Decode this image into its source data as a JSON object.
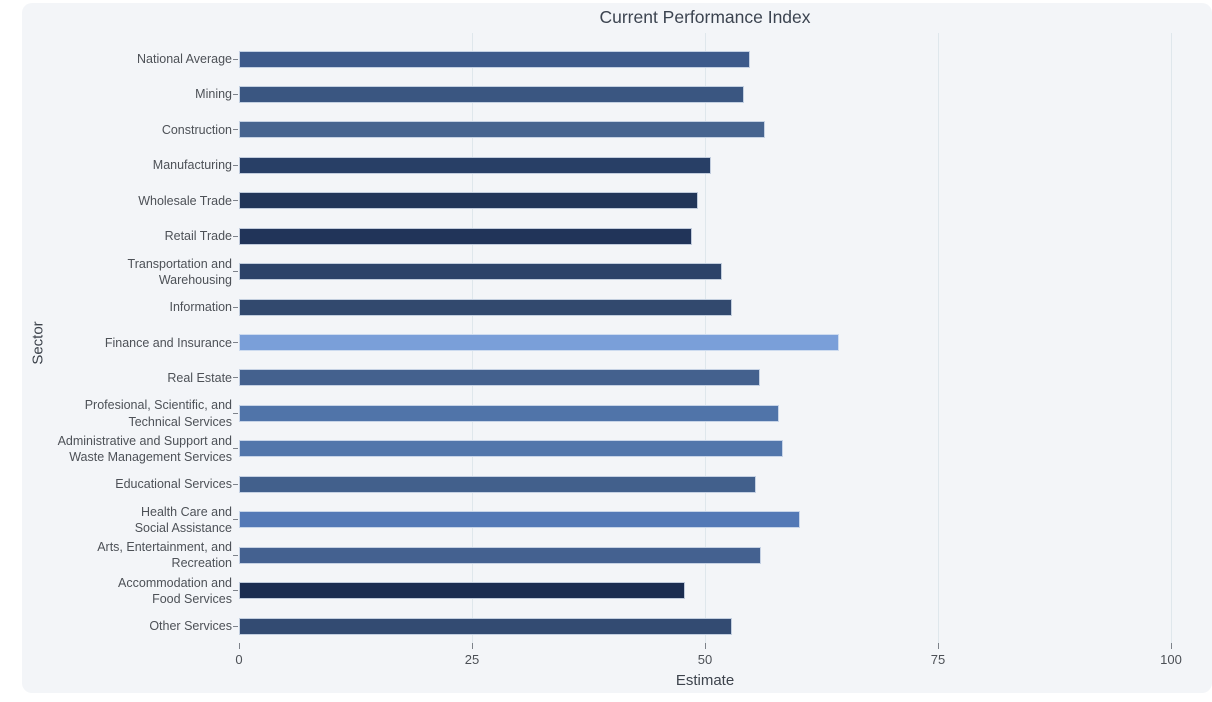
{
  "chart_data": {
    "type": "bar",
    "orientation": "horizontal",
    "title": "Current Performance Index",
    "xlabel": "Estimate",
    "ylabel": "Sector",
    "xlim": [
      0,
      100
    ],
    "xticks": [
      0,
      25,
      50,
      75,
      100
    ],
    "grid": true,
    "legend": "none",
    "categories": [
      "National Average",
      "Mining",
      "Construction",
      "Manufacturing",
      "Wholesale Trade",
      "Retail Trade",
      "Transportation and\nWarehousing",
      "Information",
      "Finance and Insurance",
      "Real Estate",
      "Profesional, Scientific, and\nTechnical Services",
      "Administrative and Support and\nWaste Management Services",
      "Educational Services",
      "Health Care and\nSocial Assistance",
      "Arts, Entertainment, and\nRecreation",
      "Accommodation and\nFood Services",
      "Other Services"
    ],
    "values": [
      54.8,
      54.2,
      56.4,
      50.6,
      49.3,
      48.6,
      51.8,
      52.9,
      64.4,
      55.9,
      57.9,
      58.4,
      55.5,
      60.2,
      56.0,
      47.9,
      52.9
    ],
    "bar_colors": [
      "#3d5a8b",
      "#3a5681",
      "#46648f",
      "#283f66",
      "#223659",
      "#213459",
      "#2c4369",
      "#32496e",
      "#7a9fd9",
      "#44618e",
      "#5074a9",
      "#5276ab",
      "#42608c",
      "#5379b6",
      "#446190",
      "#1a2c50",
      "#334b72"
    ]
  },
  "colors": {
    "figure_background": "#f3f5f8",
    "page_background": "#ffffff",
    "gridline": "#dfe7ec",
    "tick_text": "#4c5056",
    "title_text": "#3c4450",
    "lowest_bar": "#1a2c50",
    "highest_bar": "#7a9fd9"
  }
}
